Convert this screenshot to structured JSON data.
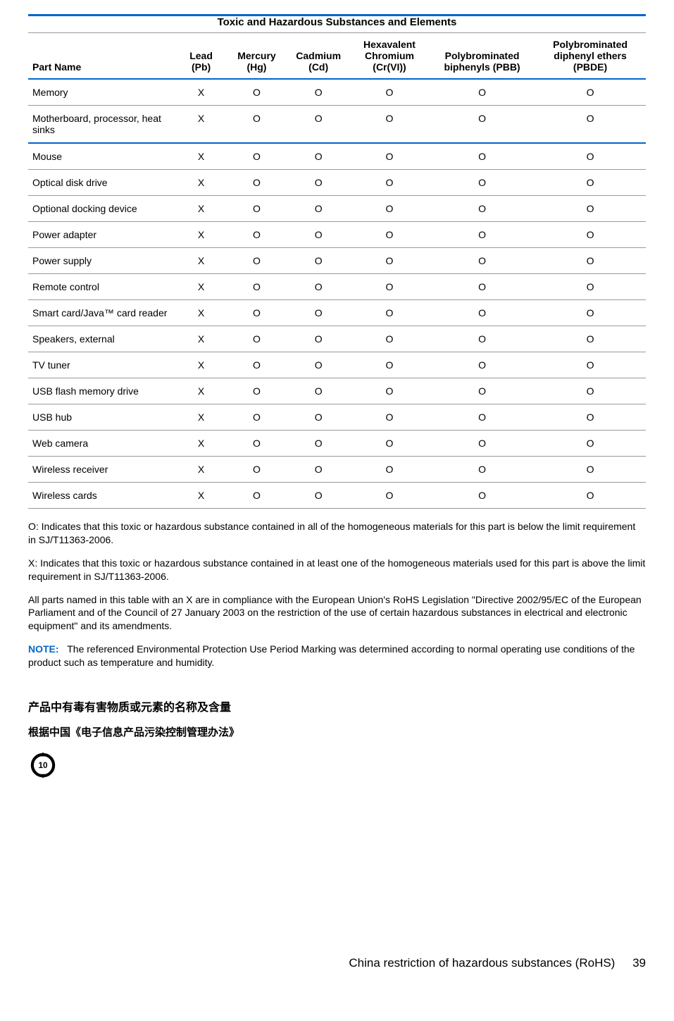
{
  "table": {
    "title": "Toxic and Hazardous Substances and Elements",
    "columns": [
      "Part Name",
      "Lead (Pb)",
      "Mercury (Hg)",
      "Cadmium (Cd)",
      "Hexavalent Chromium (Cr(VI))",
      "Polybrominated biphenyls (PBB)",
      "Polybrominated diphenyl ethers (PBDE)"
    ],
    "rows": [
      {
        "name": "Memory",
        "vals": [
          "X",
          "O",
          "O",
          "O",
          "O",
          "O"
        ],
        "sep": false
      },
      {
        "name": "Motherboard, processor, heat sinks",
        "vals": [
          "X",
          "O",
          "O",
          "O",
          "O",
          "O"
        ],
        "sep": true
      },
      {
        "name": "Mouse",
        "vals": [
          "X",
          "O",
          "O",
          "O",
          "O",
          "O"
        ],
        "sep": false
      },
      {
        "name": "Optical disk drive",
        "vals": [
          "X",
          "O",
          "O",
          "O",
          "O",
          "O"
        ],
        "sep": false
      },
      {
        "name": "Optional docking device",
        "vals": [
          "X",
          "O",
          "O",
          "O",
          "O",
          "O"
        ],
        "sep": false
      },
      {
        "name": "Power adapter",
        "vals": [
          "X",
          "O",
          "O",
          "O",
          "O",
          "O"
        ],
        "sep": false
      },
      {
        "name": "Power supply",
        "vals": [
          "X",
          "O",
          "O",
          "O",
          "O",
          "O"
        ],
        "sep": false
      },
      {
        "name": "Remote control",
        "vals": [
          "X",
          "O",
          "O",
          "O",
          "O",
          "O"
        ],
        "sep": false
      },
      {
        "name": "Smart card/Java™ card reader",
        "vals": [
          "X",
          "O",
          "O",
          "O",
          "O",
          "O"
        ],
        "sep": false
      },
      {
        "name": "Speakers, external",
        "vals": [
          "X",
          "O",
          "O",
          "O",
          "O",
          "O"
        ],
        "sep": false
      },
      {
        "name": "TV tuner",
        "vals": [
          "X",
          "O",
          "O",
          "O",
          "O",
          "O"
        ],
        "sep": false
      },
      {
        "name": "USB flash memory drive",
        "vals": [
          "X",
          "O",
          "O",
          "O",
          "O",
          "O"
        ],
        "sep": false
      },
      {
        "name": "USB hub",
        "vals": [
          "X",
          "O",
          "O",
          "O",
          "O",
          "O"
        ],
        "sep": false
      },
      {
        "name": "Web camera",
        "vals": [
          "X",
          "O",
          "O",
          "O",
          "O",
          "O"
        ],
        "sep": false
      },
      {
        "name": "Wireless receiver",
        "vals": [
          "X",
          "O",
          "O",
          "O",
          "O",
          "O"
        ],
        "sep": false
      },
      {
        "name": "Wireless cards",
        "vals": [
          "X",
          "O",
          "O",
          "O",
          "O",
          "O"
        ],
        "sep": false
      }
    ],
    "col_widths_pct": [
      24,
      8,
      10,
      10,
      13,
      17,
      18
    ],
    "border_blue": "#0066cc",
    "border_gray": "#999999"
  },
  "footnotes": {
    "o_text": "O: Indicates that this toxic or hazardous substance contained in all of the homogeneous materials for this part is below the limit requirement in SJ/T11363-2006.",
    "x_text": "X: Indicates that this toxic or hazardous substance contained in at least one of the homogeneous materials used for this part is above the limit requirement in SJ/T11363-2006.",
    "compliance_text": "All parts named in this table with an X are in compliance with the European Union's RoHS Legislation \"Directive 2002/95/EC of the European Parliament and of the Council of 27 January 2003 on the restriction of the use of certain hazardous substances in electrical and electronic equipment\" and its amendments.",
    "note_label": "NOTE:",
    "note_text": "The referenced Environmental Protection Use Period Marking was determined according to normal operating use conditions of the product such as temperature and humidity."
  },
  "chinese": {
    "heading1": "产品中有毒有害物质或元素的名称及含量",
    "heading2": "根据中国《电子信息产品污染控制管理办法》",
    "epup_number": "10"
  },
  "footer": {
    "section": "China restriction of hazardous substances (RoHS)",
    "page": "39"
  }
}
